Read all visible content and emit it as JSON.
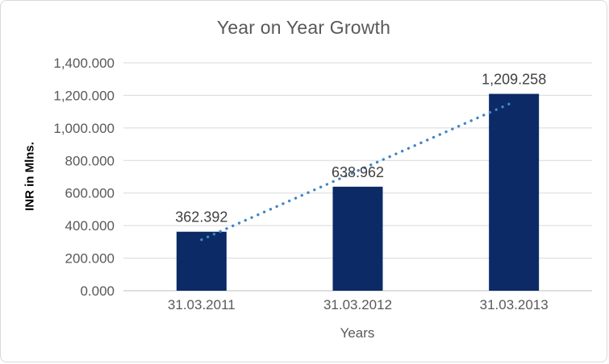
{
  "frame": {
    "background": "#FFFFFF",
    "border_color": "#D9D9D9"
  },
  "chart_data": {
    "type": "bar",
    "title": "Year on Year Growth",
    "xlabel": "Years",
    "ylabel": "INR in Mlns.",
    "categories": [
      "31.03.2011",
      "31.03.2012",
      "31.03.2013"
    ],
    "values": [
      362.392,
      638.962,
      1209.258
    ],
    "data_labels": [
      "362.392",
      "638.962",
      "1,209.258"
    ],
    "ylim": [
      0,
      1400
    ],
    "ytick_step": 200,
    "ytick_labels": [
      "0.000",
      "200.000",
      "400.000",
      "600.000",
      "800.000",
      "1,000.000",
      "1,200.000",
      "1,400.000"
    ],
    "grid": true,
    "legend": "none",
    "trendline": {
      "type": "linear",
      "style": "dotted",
      "endpoints_values": [
        313.44,
        1160.3
      ]
    },
    "colors": {
      "bar": "#0B2A66",
      "trendline": "#4384C6",
      "gridline": "#D9D9D9",
      "axis_line": "#BFBFBF",
      "tick_text": "#595959",
      "data_label_text": "#404040",
      "title_text": "#595959",
      "axis_title_text": "#595959",
      "ylabel_text": "#000000"
    }
  }
}
